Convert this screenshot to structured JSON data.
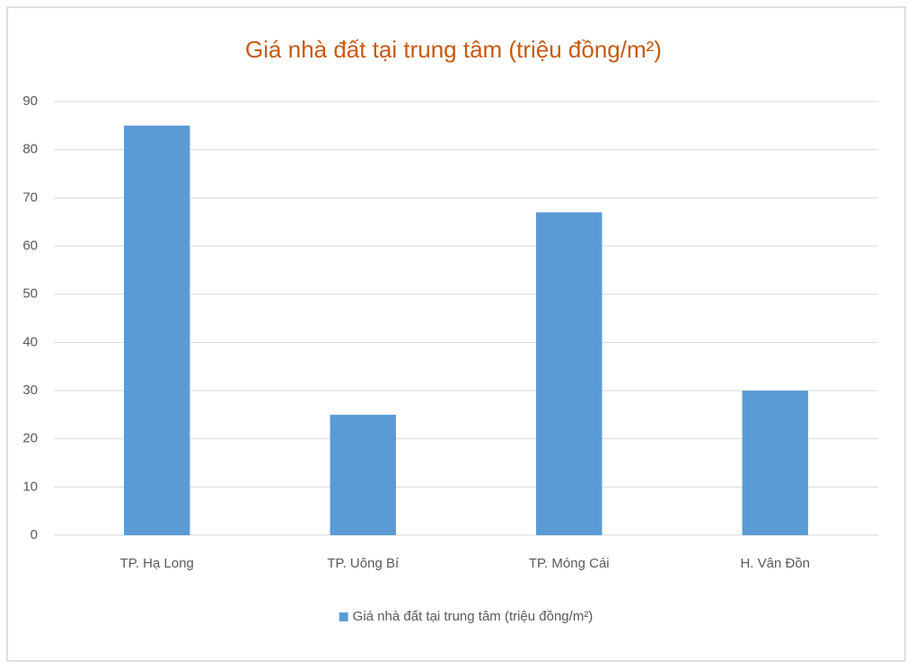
{
  "chart_data": {
    "type": "bar",
    "title": "Giá nhà đất tại trung tâm (triệu đồng/m²)",
    "categories": [
      "TP. Hạ Long",
      "TP. Uông Bí",
      "TP. Móng Cái",
      "H. Vân Đồn"
    ],
    "series": [
      {
        "name": "Giá nhà đất tại trung tâm (triệu đồng/m²)",
        "color": "#5b9bd5",
        "values": [
          85,
          25,
          67,
          30
        ]
      }
    ],
    "ylim": [
      0,
      90
    ],
    "yticks": [
      0,
      10,
      20,
      30,
      40,
      50,
      60,
      70,
      80,
      90
    ],
    "grid": true,
    "legend": "bottom"
  }
}
